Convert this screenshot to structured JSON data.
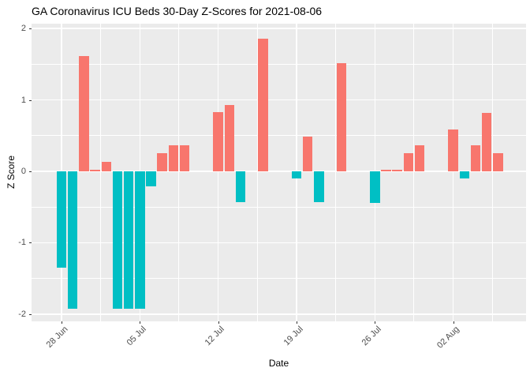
{
  "chart_data": {
    "type": "bar",
    "title": "GA Coronavirus ICU Beds 30-Day Z-Scores for 2021-08-06",
    "xlabel": "Date",
    "ylabel": "Z Score",
    "ylim": [
      -2.1,
      2.05
    ],
    "y_major_ticks": [
      2,
      1,
      0,
      -1,
      -2
    ],
    "y_minor_gridlines": [
      1.5,
      0.5,
      -0.5,
      -1.5
    ],
    "x_ticks": [
      {
        "label": "28 Jun",
        "day": 0
      },
      {
        "label": "05 Jul",
        "day": 7
      },
      {
        "label": "12 Jul",
        "day": 14
      },
      {
        "label": "19 Jul",
        "day": 21
      },
      {
        "label": "26 Jul",
        "day": 28
      },
      {
        "label": "02 Aug",
        "day": 35
      }
    ],
    "x_minor_gridline_days": [
      3.5,
      10.5,
      17.5,
      24.5,
      31.5,
      38.5
    ],
    "grid": true,
    "legend": "none",
    "points": [
      {
        "date": "2021-06-28",
        "day": 0,
        "z": -1.35
      },
      {
        "date": "2021-06-29",
        "day": 1,
        "z": -1.92
      },
      {
        "date": "2021-06-30",
        "day": 2,
        "z": 1.62
      },
      {
        "date": "2021-07-01",
        "day": 3,
        "z": 0.02
      },
      {
        "date": "2021-07-02",
        "day": 4,
        "z": 0.13
      },
      {
        "date": "2021-07-03",
        "day": 5,
        "z": -1.92
      },
      {
        "date": "2021-07-04",
        "day": 6,
        "z": -1.92
      },
      {
        "date": "2021-07-05",
        "day": 7,
        "z": -1.92
      },
      {
        "date": "2021-07-06",
        "day": 8,
        "z": -0.21
      },
      {
        "date": "2021-07-07",
        "day": 9,
        "z": 0.25
      },
      {
        "date": "2021-07-08",
        "day": 10,
        "z": 0.36
      },
      {
        "date": "2021-07-09",
        "day": 11,
        "z": 0.36
      },
      {
        "date": "2021-07-12",
        "day": 14,
        "z": 0.83
      },
      {
        "date": "2021-07-13",
        "day": 15,
        "z": 0.93
      },
      {
        "date": "2021-07-14",
        "day": 16,
        "z": -0.43
      },
      {
        "date": "2021-07-16",
        "day": 18,
        "z": 1.86
      },
      {
        "date": "2021-07-19",
        "day": 21,
        "z": -0.1
      },
      {
        "date": "2021-07-20",
        "day": 22,
        "z": 0.49
      },
      {
        "date": "2021-07-21",
        "day": 23,
        "z": -0.43
      },
      {
        "date": "2021-07-23",
        "day": 25,
        "z": 1.51
      },
      {
        "date": "2021-07-26",
        "day": 28,
        "z": -0.44
      },
      {
        "date": "2021-07-27",
        "day": 29,
        "z": 0.02
      },
      {
        "date": "2021-07-28",
        "day": 30,
        "z": 0.02
      },
      {
        "date": "2021-07-29",
        "day": 31,
        "z": 0.25
      },
      {
        "date": "2021-07-30",
        "day": 32,
        "z": 0.36
      },
      {
        "date": "2021-08-02",
        "day": 35,
        "z": 0.59
      },
      {
        "date": "2021-08-03",
        "day": 36,
        "z": -0.1
      },
      {
        "date": "2021-08-04",
        "day": 37,
        "z": 0.36
      },
      {
        "date": "2021-08-05",
        "day": 38,
        "z": 0.82
      },
      {
        "date": "2021-08-06",
        "day": 39,
        "z": 0.25
      }
    ],
    "colors": {
      "positive": "#F8766D",
      "negative": "#00BFC4",
      "panel_background": "#EBEBEB",
      "gridline": "#FFFFFF",
      "tick_label": "#4D4D4D",
      "tick_mark": "#333333",
      "title_text": "#000000"
    }
  }
}
